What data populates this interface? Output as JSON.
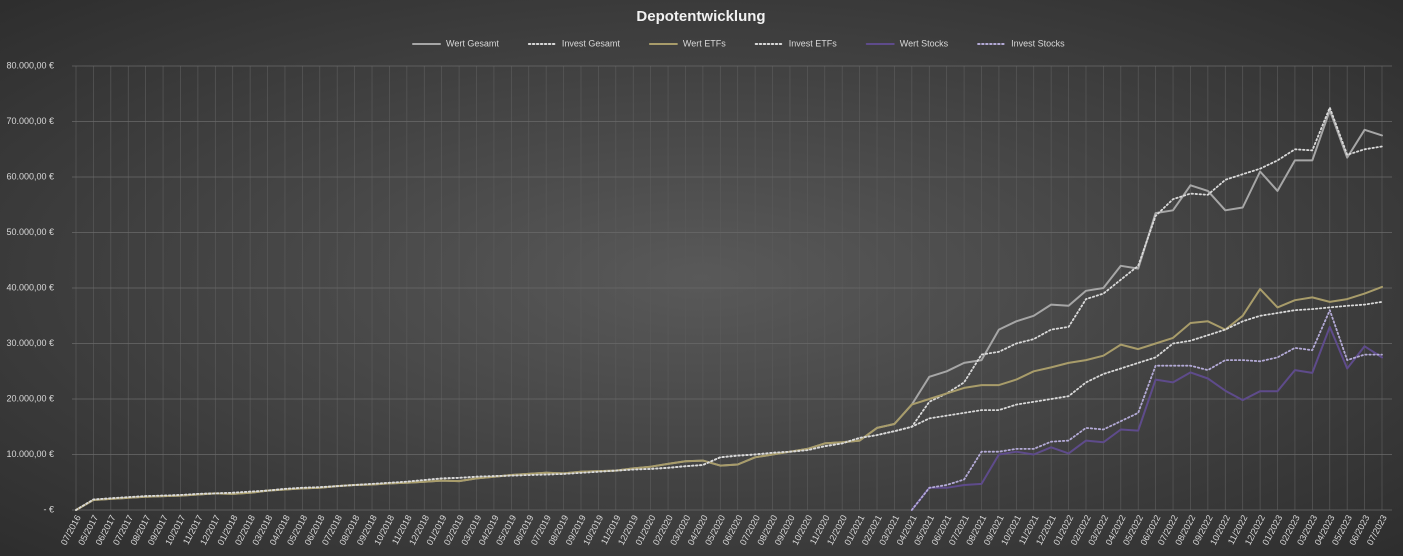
{
  "chart_data": {
    "type": "line",
    "title": "Depotentwicklung",
    "categories": [
      "07/2016",
      "05/2017",
      "06/2017",
      "07/2017",
      "08/2017",
      "09/2017",
      "10/2017",
      "11/2017",
      "12/2017",
      "01/2018",
      "02/2018",
      "03/2018",
      "04/2018",
      "05/2018",
      "06/2018",
      "07/2018",
      "08/2018",
      "09/2018",
      "10/2018",
      "11/2018",
      "12/2018",
      "01/2019",
      "02/2019",
      "03/2019",
      "04/2019",
      "05/2019",
      "06/2019",
      "07/2019",
      "08/2019",
      "09/2019",
      "10/2019",
      "11/2019",
      "12/2019",
      "01/2020",
      "02/2020",
      "03/2020",
      "04/2020",
      "05/2020",
      "06/2020",
      "07/2020",
      "08/2020",
      "09/2020",
      "10/2020",
      "11/2020",
      "12/2020",
      "01/2021",
      "02/2021",
      "03/2021",
      "04/2021",
      "05/2021",
      "06/2021",
      "07/2021",
      "08/2021",
      "09/2021",
      "10/2021",
      "11/2021",
      "12/2021",
      "01/2022",
      "02/2022",
      "03/2022",
      "04/2022",
      "05/2022",
      "06/2022",
      "07/2022",
      "08/2022",
      "09/2022",
      "10/2022",
      "11/2022",
      "12/2022",
      "01/2023",
      "02/2023",
      "03/2023",
      "04/2023",
      "05/2023",
      "06/2023",
      "07/2023"
    ],
    "series": [
      {
        "name": "Wert Gesamt",
        "color": "#a6a6a6",
        "dashed": false,
        "values": [
          0,
          1800,
          2000,
          2200,
          2400,
          2500,
          2600,
          2800,
          3000,
          2900,
          3100,
          3500,
          3700,
          3900,
          4000,
          4300,
          4500,
          4600,
          4800,
          4900,
          5100,
          5300,
          5200,
          5700,
          6000,
          6300,
          6500,
          6700,
          6600,
          6900,
          7000,
          7100,
          7500,
          7800,
          8300,
          8800,
          8900,
          8000,
          8200,
          9500,
          10000,
          10500,
          11000,
          12000,
          12200,
          12500,
          14800,
          15500,
          19000,
          24000,
          25000,
          26500,
          27000,
          32500,
          34000,
          35000,
          37000,
          36800,
          39500,
          40000,
          44000,
          43500,
          53500,
          54000,
          58500,
          57500,
          54000,
          54500,
          61000,
          57500,
          63000,
          63000,
          72000,
          63500,
          68500,
          67500
        ]
      },
      {
        "name": "Invest Gesamt",
        "color": "#d9d9d9",
        "dashed": true,
        "values": [
          0,
          1900,
          2100,
          2300,
          2500,
          2600,
          2700,
          2900,
          3000,
          3100,
          3300,
          3500,
          3800,
          4000,
          4100,
          4300,
          4500,
          4700,
          4900,
          5100,
          5400,
          5700,
          5800,
          6000,
          6100,
          6200,
          6300,
          6400,
          6500,
          6700,
          6900,
          7100,
          7300,
          7400,
          7600,
          7900,
          8100,
          9500,
          9800,
          10000,
          10300,
          10500,
          10800,
          11500,
          12000,
          13000,
          13500,
          14200,
          15000,
          19500,
          21000,
          23000,
          28000,
          28500,
          30000,
          30800,
          32500,
          33000,
          38000,
          39000,
          41500,
          44000,
          53000,
          56000,
          57000,
          56800,
          59500,
          60500,
          61500,
          63000,
          65000,
          64800,
          72500,
          64000,
          65000,
          65500
        ]
      },
      {
        "name": "Wert ETFs",
        "color": "#a89c6a",
        "dashed": false,
        "values": [
          0,
          1800,
          2000,
          2200,
          2400,
          2500,
          2600,
          2800,
          3000,
          2900,
          3100,
          3500,
          3700,
          3900,
          4000,
          4300,
          4500,
          4600,
          4800,
          4900,
          5100,
          5300,
          5200,
          5700,
          6000,
          6300,
          6500,
          6700,
          6600,
          6900,
          7000,
          7100,
          7500,
          7800,
          8300,
          8800,
          8900,
          8000,
          8200,
          9500,
          10000,
          10500,
          11000,
          12000,
          12200,
          12500,
          14800,
          15500,
          19000,
          20000,
          21000,
          22000,
          22500,
          22500,
          23500,
          25000,
          25700,
          26500,
          27000,
          27800,
          29800,
          29000,
          30000,
          31000,
          33700,
          34000,
          32500,
          35000,
          39800,
          36500,
          37800,
          38300,
          37500,
          38000,
          39000,
          40200
        ]
      },
      {
        "name": "Invest ETFs",
        "color": "#d9d9d9",
        "dashed": true,
        "values": [
          0,
          1900,
          2100,
          2300,
          2500,
          2600,
          2700,
          2900,
          3000,
          3100,
          3300,
          3500,
          3800,
          4000,
          4100,
          4300,
          4500,
          4700,
          4900,
          5100,
          5400,
          5700,
          5800,
          6000,
          6100,
          6200,
          6300,
          6400,
          6500,
          6700,
          6900,
          7100,
          7300,
          7400,
          7600,
          7900,
          8100,
          9500,
          9800,
          10000,
          10300,
          10500,
          10800,
          11500,
          12000,
          13000,
          13500,
          14200,
          15000,
          16500,
          17000,
          17500,
          18000,
          18000,
          19000,
          19500,
          20000,
          20500,
          23000,
          24500,
          25500,
          26500,
          27500,
          30000,
          30500,
          31500,
          32500,
          34000,
          35000,
          35500,
          36000,
          36200,
          36500,
          36800,
          37000,
          37500
        ]
      },
      {
        "name": "Wert Stocks",
        "color": "#5e4b8b",
        "dashed": false,
        "values": [
          null,
          null,
          null,
          null,
          null,
          null,
          null,
          null,
          null,
          null,
          null,
          null,
          null,
          null,
          null,
          null,
          null,
          null,
          null,
          null,
          null,
          null,
          null,
          null,
          null,
          null,
          null,
          null,
          null,
          null,
          null,
          null,
          null,
          null,
          null,
          null,
          null,
          null,
          null,
          null,
          null,
          null,
          null,
          null,
          null,
          null,
          null,
          null,
          0,
          4000,
          4000,
          4500,
          4700,
          10000,
          10500,
          10000,
          11300,
          10200,
          12500,
          12200,
          14500,
          14300,
          23500,
          23000,
          24800,
          23700,
          21500,
          19800,
          21400,
          21400,
          25200,
          24700,
          33000,
          25500,
          29500,
          27500
        ]
      },
      {
        "name": "Invest Stocks",
        "color": "#b3aad6",
        "dashed": true,
        "values": [
          null,
          null,
          null,
          null,
          null,
          null,
          null,
          null,
          null,
          null,
          null,
          null,
          null,
          null,
          null,
          null,
          null,
          null,
          null,
          null,
          null,
          null,
          null,
          null,
          null,
          null,
          null,
          null,
          null,
          null,
          null,
          null,
          null,
          null,
          null,
          null,
          null,
          null,
          null,
          null,
          null,
          null,
          null,
          null,
          null,
          null,
          null,
          null,
          0,
          4000,
          4500,
          5500,
          10500,
          10500,
          11000,
          11000,
          12300,
          12500,
          14800,
          14500,
          16000,
          17500,
          26000,
          26000,
          26000,
          25200,
          27000,
          27000,
          26800,
          27500,
          29200,
          28800,
          36000,
          27000,
          28000,
          28000
        ]
      }
    ],
    "ylim": [
      0,
      80000
    ],
    "yticks": [
      {
        "value": 0,
        "label": "- €"
      },
      {
        "value": 10000,
        "label": "10.000,00 €"
      },
      {
        "value": 20000,
        "label": "20.000,00 €"
      },
      {
        "value": 30000,
        "label": "30.000,00 €"
      },
      {
        "value": 40000,
        "label": "40.000,00 €"
      },
      {
        "value": 50000,
        "label": "50.000,00 €"
      },
      {
        "value": 60000,
        "label": "60.000,00 €"
      },
      {
        "value": 70000,
        "label": "70.000,00 €"
      },
      {
        "value": 80000,
        "label": "80.000,00 €"
      }
    ],
    "grid": true,
    "legend": "top"
  }
}
